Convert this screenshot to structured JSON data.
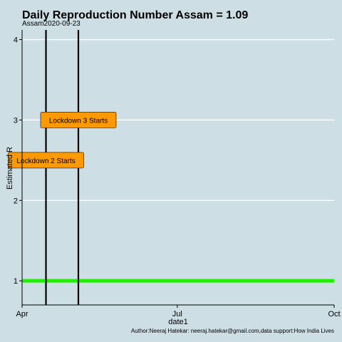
{
  "chart_data": {
    "type": "line",
    "title": "Daily Reproduction Number Assam = 1.09",
    "subtitle": "Assam2020-09-23",
    "xlabel": "date1",
    "ylabel": "Estimated R",
    "caption": "Author:Neeraj Hatekar: neeraj.hatekar@gmail.com,data support:How India Lives",
    "x_ticks": [
      "Apr",
      "Jul",
      "Oct"
    ],
    "x_range": [
      "2020-04-01",
      "2020-10-01"
    ],
    "y_ticks": [
      1,
      2,
      3,
      4
    ],
    "ylim": [
      0.7,
      4.12
    ],
    "grid": true,
    "reference_line": {
      "y": 1,
      "color": "#22ee00"
    },
    "vlines": [
      {
        "date": "2020-04-15",
        "color": "#000000"
      },
      {
        "date": "2020-05-04",
        "color": "#000000"
      }
    ],
    "annotations": [
      {
        "text": "Lockdown 2 Starts",
        "date": "2020-04-15",
        "y": 2.5,
        "fill": "#ff9900"
      },
      {
        "text": "Lockdown 3 Starts",
        "date": "2020-05-04",
        "y": 3.0,
        "fill": "#ff9900"
      }
    ],
    "colors": {
      "background": "#cddee5",
      "grid": "#ffffff",
      "axis": "#000000"
    }
  }
}
